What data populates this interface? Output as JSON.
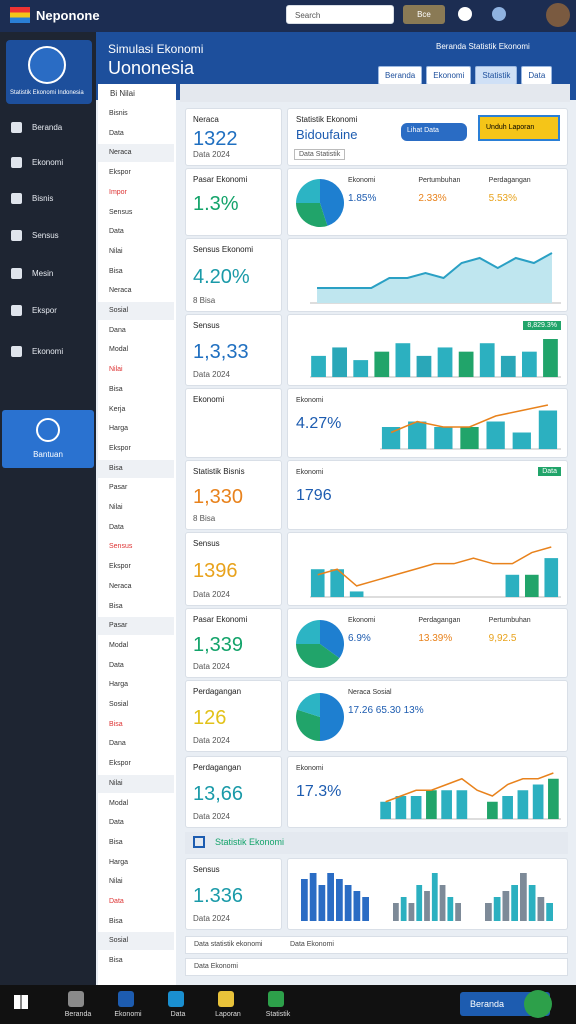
{
  "header": {
    "brand": "Neponone",
    "search": "Search",
    "button": "Bce"
  },
  "banner": {
    "subtitle": "Simulasi Ekonomi",
    "title": "Uononesia",
    "tabs": [
      "Beranda",
      "Ekonomi",
      "Statistik",
      "Data"
    ],
    "right": "Beranda Statistik Ekonomi"
  },
  "sidebar": {
    "items": [
      "Beranda",
      "Ekonomi",
      "Bisnis",
      "Sensus",
      "Mesin",
      "Ekspor",
      "Ekonomi",
      "Bantuan"
    ],
    "active": "Bantuan",
    "logo": "Statistik Ekonomi Indonesia"
  },
  "list": {
    "header": "Bi  Nilai",
    "items": [
      "Bisnis",
      "Data",
      "Neraca",
      "Ekspor",
      "Impor",
      "Sensus",
      "Data",
      "Nilai",
      "Bisa",
      "Neraca",
      "Sosial",
      "Dana",
      "Modal",
      "Nilai",
      "Bisa",
      "Kerja",
      "Harga",
      "Ekspor",
      "Bisa",
      "Pasar",
      "Nilai",
      "Data",
      "Sensus",
      "Ekspor",
      "Neraca",
      "Bisa",
      "Pasar",
      "Modal",
      "Data",
      "Harga",
      "Sosial",
      "Bisa",
      "Dana",
      "Ekspor",
      "Nilai",
      "Modal",
      "Data",
      "Bisa",
      "Harga",
      "Nilai",
      "Data",
      "Bisa",
      "Sosial",
      "Bisa"
    ]
  },
  "kpis": [
    {
      "title": "Neraca",
      "value": "1322",
      "note": "Data 2024",
      "color": "#1f6fc0"
    },
    {
      "title": "Pasar Ekonomi",
      "value": "1.3%",
      "note": "",
      "color": "#13a36a"
    },
    {
      "title": "Sensus Ekonomi",
      "value": "4.20%",
      "note": "8 Bisa",
      "color": "#1a9aa8"
    },
    {
      "title": "Sensus",
      "value": "1,3,33",
      "note": "Data 2024",
      "color": "#1f6fc0"
    },
    {
      "title": "Ekonomi",
      "value": "",
      "note": "",
      "color": "#1f6fc0"
    },
    {
      "title": "Statistik Bisnis",
      "value": "1,330",
      "note": "8 Bisa",
      "color": "#e8821c"
    },
    {
      "title": "Sensus",
      "value": "1396",
      "note": "Data 2024",
      "color": "#e8a21c"
    },
    {
      "title": "Pasar Ekonomi",
      "value": "1,339",
      "note": "Data 2024",
      "color": "#13a36a"
    },
    {
      "title": "Perdagangan",
      "value": "126",
      "note": "Data 2024",
      "color": "#e2c21a"
    },
    {
      "title": "Perdagangan",
      "value": "13,66",
      "note": "Data 2024",
      "color": "#1a9aa8"
    }
  ],
  "panels": [
    {
      "title": "Statistik Ekonomi",
      "subtitle": "Bidoufaine",
      "buttons": [
        "Lihat Data",
        "Unduh Laporan"
      ],
      "caption": "Data Statistik"
    },
    {
      "stats": [
        {
          "label": "Ekonomi",
          "value": "1.85%"
        },
        {
          "label": "Pertumbuhan",
          "value": "2.33%"
        },
        {
          "label": "Perdagangan",
          "value": "5.53%"
        }
      ],
      "chart": {
        "kind": "pie",
        "values": [
          45,
          30,
          25
        ]
      }
    },
    {
      "chart": {
        "kind": "area",
        "values": [
          3,
          3,
          3,
          3,
          5,
          5,
          6,
          5,
          8,
          9,
          7,
          9,
          8,
          10
        ]
      }
    },
    {
      "badge": "8,829.3%",
      "chart": {
        "kind": "bars",
        "values": [
          5,
          7,
          4,
          6,
          8,
          5,
          7,
          6,
          8,
          5,
          6,
          9
        ]
      }
    },
    {
      "stats": [
        {
          "label": "Ekonomi",
          "value": "4.27%"
        }
      ],
      "chart": {
        "kind": "combo",
        "values": [
          4,
          5,
          4,
          4,
          5,
          3,
          7
        ],
        "line": [
          3,
          5,
          4,
          4,
          6,
          7,
          8
        ]
      }
    },
    {
      "stats": [
        {
          "label": "Ekonomi",
          "value": "1796"
        }
      ],
      "badge": "Data"
    },
    {
      "chart": {
        "kind": "combo",
        "values": [
          5,
          5,
          1,
          0,
          0,
          0,
          0,
          0,
          0,
          0,
          4,
          4,
          7
        ],
        "line": [
          4,
          5,
          2,
          3,
          4,
          5,
          6,
          6,
          7,
          6,
          6,
          8,
          9
        ]
      }
    },
    {
      "stats": [
        {
          "label": "Ekonomi",
          "value": "6.9%"
        },
        {
          "label": "Perdagangan",
          "value": "13.39%"
        },
        {
          "label": "Pertumbuhan",
          "value": "9,92.5"
        }
      ],
      "chart": {
        "kind": "pie",
        "values": [
          35,
          40,
          25
        ]
      }
    },
    {
      "stats": [
        {
          "label": "Neraca Sosial",
          "value": "17.26 65.30 13%"
        }
      ],
      "chart": {
        "kind": "pie",
        "values": [
          50,
          30,
          20
        ]
      }
    },
    {
      "stats": [
        {
          "label": "Ekonomi",
          "value": "17.3%"
        }
      ],
      "chart": {
        "kind": "combo",
        "values": [
          3,
          4,
          4,
          5,
          5,
          5,
          0,
          3,
          4,
          5,
          6,
          7
        ],
        "line": [
          3,
          4,
          5,
          5,
          6,
          7,
          5,
          4,
          6,
          7,
          7,
          8
        ]
      }
    }
  ],
  "section": "Statistik Ekonomi",
  "bottom": {
    "kpi": {
      "title": "Sensus",
      "value": "1.336",
      "note": "Data 2024",
      "color": "#1a9aa8"
    },
    "charts": [
      [
        7,
        8,
        6,
        8,
        7,
        6,
        5,
        4
      ],
      [
        3,
        4,
        3,
        6,
        5,
        8,
        6,
        4,
        3
      ],
      [
        3,
        4,
        5,
        6,
        8,
        6,
        4,
        3
      ]
    ]
  },
  "footer": {
    "left": "Data statistik ekonomi",
    "mid": "Data Ekonomi",
    "bottom": "Data Ekonomi"
  },
  "taskbar": {
    "items": [
      "Beranda",
      "Ekonomi",
      "Data",
      "Laporan",
      "Statistik"
    ],
    "button": "Beranda"
  }
}
